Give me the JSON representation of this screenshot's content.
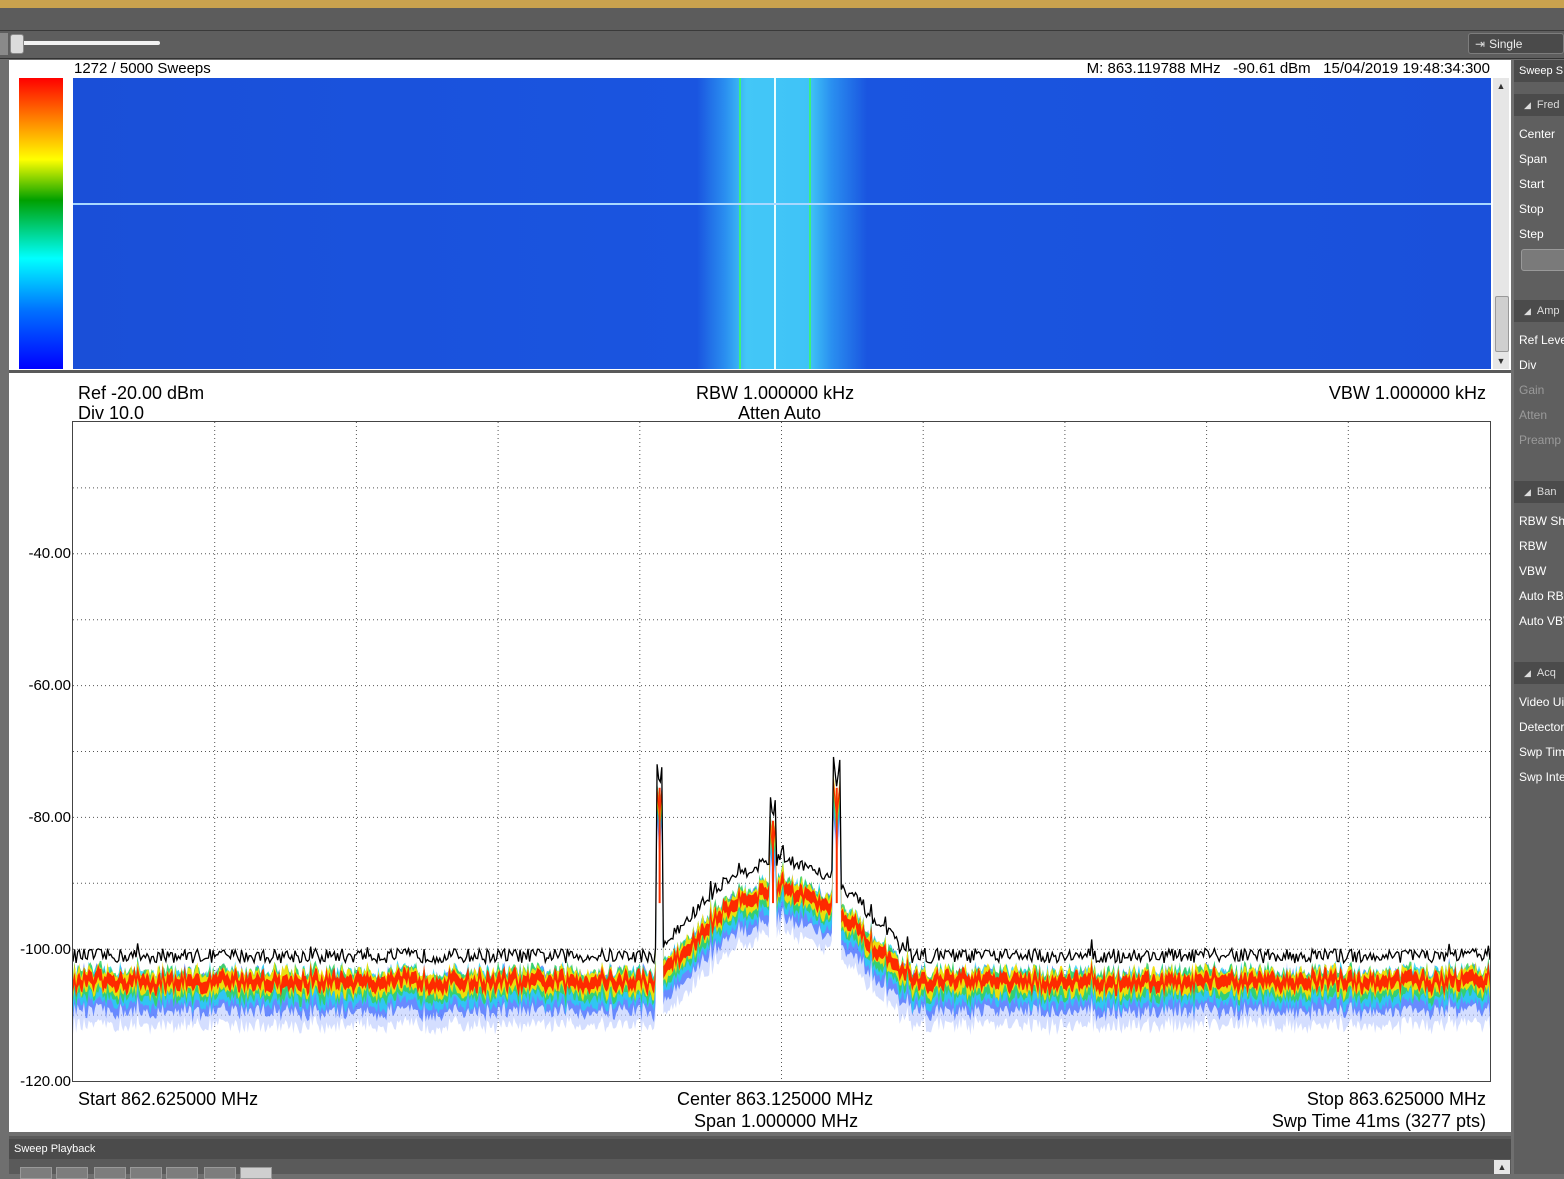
{
  "toolbar": {
    "sweep_mode_label": "Single"
  },
  "waterfall": {
    "sweep_count": "1272 / 5000 Sweeps",
    "marker_readout": "M: 863.119788 MHz   -90.61 dBm   15/04/2019 19:48:34:300"
  },
  "trace_header": {
    "ref": "Ref -20.00 dBm",
    "div": "Div 10.0",
    "rbw": "RBW 1.000000 kHz",
    "atten": "Atten Auto",
    "vbw": "VBW 1.000000 kHz"
  },
  "trace_footer": {
    "start": "Start 862.625000 MHz",
    "center": "Center 863.125000 MHz",
    "span": "Span 1.000000 MHz",
    "stop": "Stop 863.625000 MHz",
    "swp_time": "Swp Time 41ms (3277 pts)"
  },
  "chart_data": {
    "type": "line",
    "xlim": [
      862.625,
      863.625
    ],
    "ylim": [
      -120,
      -20
    ],
    "y_ticks": [
      "-40.00",
      "-60.00",
      "-80.00",
      "-100.00",
      "-120.00"
    ],
    "grid": true,
    "noise_floor_dbm": -101,
    "signal_center_mhz": 863.125,
    "peaks": [
      {
        "x": 863.039,
        "y": -75.5
      },
      {
        "x": 863.119,
        "y": -80.5
      },
      {
        "x": 863.164,
        "y": -75.5
      }
    ]
  },
  "sidebar": {
    "top_label": "Sweep S",
    "sections": [
      {
        "title": "Fred",
        "items": [
          "Center",
          "Span",
          "Start",
          "Stop",
          "Step"
        ]
      },
      {
        "title": "Amp",
        "items": [
          "Ref Leve",
          "Div",
          "Gain",
          "Atten",
          "Preamp"
        ]
      },
      {
        "title": "Ban",
        "items": [
          "RBW Sh",
          "RBW",
          "VBW",
          "Auto RBI",
          "Auto VBV"
        ]
      },
      {
        "title": "Acq",
        "items": [
          "Video Ui",
          "Detector",
          "Swp Tim",
          "Swp Inte"
        ]
      }
    ]
  },
  "playback": {
    "title": "Sweep Playback"
  },
  "colors": {
    "trace_max": "#000000",
    "waterfall_bg": "#1a52dc",
    "persistence_hot": "#ff0000"
  }
}
